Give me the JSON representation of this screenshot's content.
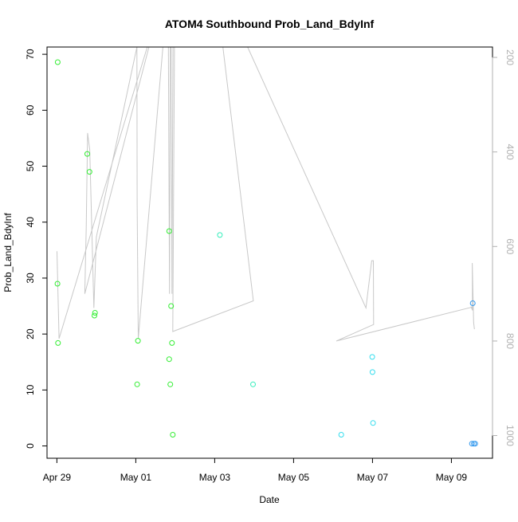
{
  "chart_data": {
    "type": "scatter",
    "title": "ATOM4 Southbound Prob_Land_BdyInf",
    "xlabel": "Date",
    "ylabel": "Prob_Land_BdyInf",
    "xlim": [
      "2024-04-28T18:00",
      "2024-05-10T01:00"
    ],
    "ylim": [
      -2.2,
      71.3
    ],
    "x_ticks": [
      {
        "date": "2024-04-29",
        "label": "Apr 29"
      },
      {
        "date": "2024-05-01",
        "label": "May 01"
      },
      {
        "date": "2024-05-03",
        "label": "May 03"
      },
      {
        "date": "2024-05-05",
        "label": "May 05"
      },
      {
        "date": "2024-05-07",
        "label": "May 07"
      },
      {
        "date": "2024-05-09",
        "label": "May 09"
      }
    ],
    "y_ticks": [
      0,
      10,
      20,
      30,
      40,
      50,
      60,
      70
    ],
    "right_axis": {
      "ticks": [
        200,
        400,
        600,
        800,
        1000
      ],
      "reversed": true,
      "range": [
        178,
        1048
      ],
      "color": "#b0b0b0"
    },
    "points": [
      {
        "date": "2024-04-29T00:30",
        "y": 68.6,
        "color": "#33ee33"
      },
      {
        "date": "2024-04-29T00:20",
        "y": 29.0,
        "color": "#33ee33"
      },
      {
        "date": "2024-04-29T00:40",
        "y": 18.4,
        "color": "#33ee33"
      },
      {
        "date": "2024-04-29T18:30",
        "y": 52.2,
        "color": "#33ee33"
      },
      {
        "date": "2024-04-29T19:50",
        "y": 49.0,
        "color": "#33ee33"
      },
      {
        "date": "2024-04-29T23:10",
        "y": 23.8,
        "color": "#33ee33"
      },
      {
        "date": "2024-04-29T22:50",
        "y": 23.3,
        "color": "#33ee33"
      },
      {
        "date": "2024-05-01T01:20",
        "y": 18.8,
        "color": "#33ee33"
      },
      {
        "date": "2024-05-01T00:50",
        "y": 11.0,
        "color": "#33ee33"
      },
      {
        "date": "2024-05-01T20:20",
        "y": 38.4,
        "color": "#33ee33"
      },
      {
        "date": "2024-05-01T21:30",
        "y": 25.0,
        "color": "#33ee33"
      },
      {
        "date": "2024-05-01T22:00",
        "y": 18.4,
        "color": "#33ee33"
      },
      {
        "date": "2024-05-01T20:20",
        "y": 15.5,
        "color": "#33ee33"
      },
      {
        "date": "2024-05-01T21:00",
        "y": 11.0,
        "color": "#33ee33"
      },
      {
        "date": "2024-05-01T22:30",
        "y": 2.0,
        "color": "#33ee33"
      },
      {
        "date": "2024-05-03T03:10",
        "y": 37.7,
        "color": "#33eebb"
      },
      {
        "date": "2024-05-03T23:20",
        "y": 11.0,
        "color": "#33eebb"
      },
      {
        "date": "2024-05-06T05:00",
        "y": 2.0,
        "color": "#33ddee"
      },
      {
        "date": "2024-05-06T23:50",
        "y": 15.9,
        "color": "#33ddee"
      },
      {
        "date": "2024-05-07T00:00",
        "y": 13.2,
        "color": "#33ddee"
      },
      {
        "date": "2024-05-07T00:20",
        "y": 4.1,
        "color": "#33ddee"
      },
      {
        "date": "2024-05-09T13:00",
        "y": 25.5,
        "color": "#3399ee"
      },
      {
        "date": "2024-05-09T12:30",
        "y": 0.4,
        "color": "#3399ee"
      },
      {
        "date": "2024-05-09T13:40",
        "y": 0.4,
        "color": "#3399ee"
      },
      {
        "date": "2024-05-09T14:30",
        "y": 0.4,
        "color": "#3399ee"
      }
    ],
    "line_series": {
      "axis": "right",
      "color": "#c8c8c8",
      "points": [
        {
          "date": "2024-04-29T00:05",
          "v": 610
        },
        {
          "date": "2024-04-29T01:20",
          "v": 795
        },
        {
          "date": "2024-05-01T07:00",
          "v": 178
        },
        {
          "date": "2024-05-01T08:00",
          "v": 178
        },
        {
          "date": "2024-04-29T17:00",
          "v": 700
        },
        {
          "date": "2024-04-29T17:50",
          "v": 560
        },
        {
          "date": "2024-04-29T18:40",
          "v": 360
        },
        {
          "date": "2024-04-29T20:00",
          "v": 395
        },
        {
          "date": "2024-04-29T22:30",
          "v": 730
        },
        {
          "date": "2024-04-30T00:00",
          "v": 580
        },
        {
          "date": "2024-05-01T00:40",
          "v": 178
        },
        {
          "date": "2024-05-01T00:50",
          "v": 510
        },
        {
          "date": "2024-05-01T01:30",
          "v": 795
        },
        {
          "date": "2024-05-01T16:30",
          "v": 178
        },
        {
          "date": "2024-05-01T19:50",
          "v": 178
        },
        {
          "date": "2024-05-01T20:30",
          "v": 700
        },
        {
          "date": "2024-05-01T21:00",
          "v": 178
        },
        {
          "date": "2024-05-01T21:30",
          "v": 178
        },
        {
          "date": "2024-05-01T22:00",
          "v": 700
        },
        {
          "date": "2024-05-01T22:40",
          "v": 178
        },
        {
          "date": "2024-05-01T23:30",
          "v": 178
        },
        {
          "date": "2024-05-01T22:30",
          "v": 780
        },
        {
          "date": "2024-05-03T23:30",
          "v": 715
        },
        {
          "date": "2024-05-03T05:00",
          "v": 178
        },
        {
          "date": "2024-05-03T20:00",
          "v": 178
        },
        {
          "date": "2024-05-06T20:00",
          "v": 730
        },
        {
          "date": "2024-05-06T23:30",
          "v": 630
        },
        {
          "date": "2024-05-07T00:30",
          "v": 630
        },
        {
          "date": "2024-05-07T00:40",
          "v": 765
        },
        {
          "date": "2024-05-06T02:00",
          "v": 800
        },
        {
          "date": "2024-05-09T13:00",
          "v": 728
        },
        {
          "date": "2024-05-09T12:00",
          "v": 728
        },
        {
          "date": "2024-05-09T12:50",
          "v": 735
        },
        {
          "date": "2024-05-09T12:40",
          "v": 635
        },
        {
          "date": "2024-05-09T13:30",
          "v": 760
        },
        {
          "date": "2024-05-09T14:00",
          "v": 775
        }
      ]
    }
  }
}
